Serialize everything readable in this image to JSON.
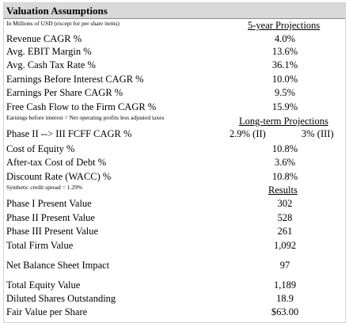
{
  "title": "Valuation Assumptions",
  "unit_note": "In Millions of USD (except for per share items)",
  "projection_header": "5-year Projections",
  "five_year": [
    {
      "label": "Revenue CAGR %",
      "value": "4.0%"
    },
    {
      "label": "Avg. EBIT Margin %",
      "value": "13.6%"
    },
    {
      "label": "Avg. Cash Tax Rate %",
      "value": "36.1%"
    },
    {
      "label": "Earnings Before Interest CAGR %",
      "value": "10.0%"
    },
    {
      "label": "Earnings Per Share CAGR %",
      "value": "9.5%"
    },
    {
      "label": "Free Cash Flow to the Firm CAGR %",
      "value": "15.9%"
    }
  ],
  "ebi_note": "Earnings before interest = Net operating profits less adjusted taxes",
  "longterm_header": "Long-term Projections",
  "phase3_label": "Phase II --> III FCFF CAGR %",
  "phase3_value_a": "2.9% (II)",
  "phase3_value_b": "3% (III)",
  "rates": [
    {
      "label": "Cost of Equity %",
      "value": "10.8%"
    },
    {
      "label": "After-tax Cost of Debt %",
      "value": "3.6%"
    },
    {
      "label": "Discount Rate (WACC) %",
      "value": "10.8%"
    }
  ],
  "spread_note": "Synthetic credit spread = 1.29%",
  "results_header": "Results",
  "results": [
    {
      "label": "Phase I Present Value",
      "value": "302"
    },
    {
      "label": "Phase II Present Value",
      "value": "528"
    },
    {
      "label": "Phase III Present Value",
      "value": "261"
    },
    {
      "label": "Total Firm Value",
      "value": "1,092"
    }
  ],
  "net_bs": {
    "label": "Net Balance Sheet Impact",
    "value": "97"
  },
  "equity": [
    {
      "label": "Total Equity Value",
      "value": "1,189"
    },
    {
      "label": "Diluted Shares Outstanding",
      "value": "18.9"
    },
    {
      "label": "Fair Value per Share",
      "value": "$63.00"
    }
  ]
}
